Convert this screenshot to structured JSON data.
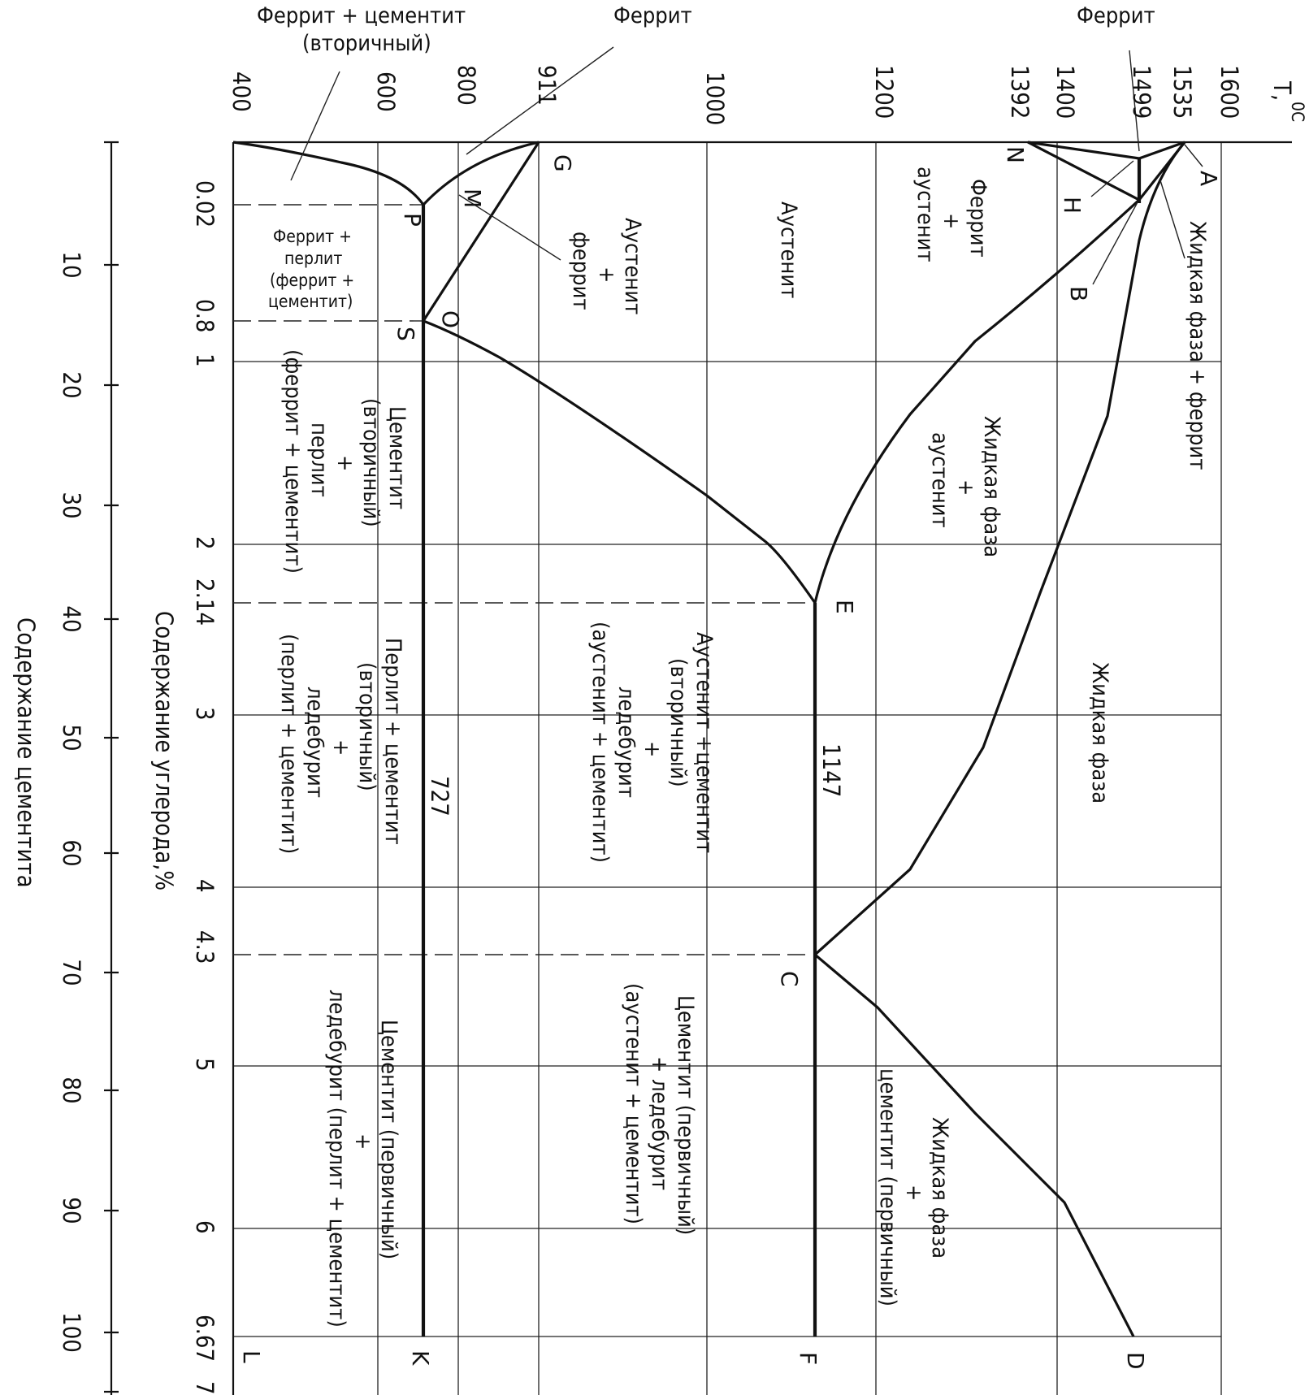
{
  "axes": {
    "temperature_label": "T,",
    "temperature_unit": "0C",
    "carbon_label": "Содержание углерода,%",
    "cementite_label": "Содержание цементита",
    "temperature_ticks": [
      "400",
      "600",
      "727",
      "800",
      "911",
      "1000",
      "1147",
      "1200",
      "1392",
      "1400",
      "1499",
      "1535",
      "1600"
    ],
    "carbon_ticks": [
      "0.02",
      "0.8",
      "1",
      "2",
      "2.14",
      "3",
      "4",
      "4.3",
      "5",
      "6",
      "6.67",
      "7"
    ],
    "cementite_ticks": [
      "10",
      "20",
      "30",
      "40",
      "50",
      "60",
      "70",
      "80",
      "90",
      "100"
    ]
  },
  "points": {
    "A": "A",
    "B": "B",
    "C": "C",
    "D": "D",
    "E": "E",
    "F": "F",
    "G": "G",
    "H": "H",
    "K": "K",
    "L": "L",
    "M": "M",
    "N": "N",
    "O": "O",
    "P": "P",
    "S": "S"
  },
  "regions": {
    "ferrite_top_left": "Феррит",
    "ferrite_top_right": "Феррит",
    "ferrite_cementite_1": "Феррит + цементит",
    "ferrite_cementite_2": "(вторичный)",
    "liquid_ferrite": "Жидкая фаза + феррит",
    "ferrite_austenite_1": "Феррит",
    "ferrite_austenite_2": "+",
    "ferrite_austenite_3": "аустенит",
    "austenite": "Аустенит",
    "austenite_ferrite_1": "Аустенит",
    "austenite_ferrite_2": "+",
    "austenite_ferrite_3": "феррит",
    "ferrite_pearlite_1": "Феррит +",
    "ferrite_pearlite_2": "перлит",
    "ferrite_pearlite_3": "(феррит +",
    "ferrite_pearlite_4": "цементит)",
    "liquid_austenite_1": "Жидкая фаза",
    "liquid_austenite_2": "+",
    "liquid_austenite_3": "аустенит",
    "liquid": "Жидкая фаза",
    "cem_pearlite_1": "Цементит",
    "cem_pearlite_2": "(вторичный)",
    "cem_pearlite_3": "+",
    "cem_pearlite_4": "перлит",
    "cem_pearlite_5": "(феррит + цементит)",
    "aus_cem_led_1": "Аустенит +цементит",
    "aus_cem_led_2": "(вторичный)",
    "aus_cem_led_3": "+",
    "aus_cem_led_4": "ледебурит",
    "aus_cem_led_5": "(аустенит + цементит)",
    "pearl_cem_led_1": "Перлит + цементит",
    "pearl_cem_led_2": "(вторичный)",
    "pearl_cem_led_3": "+",
    "pearl_cem_led_4": "ледебурит",
    "pearl_cem_led_5": "(перлит + цементит)",
    "cem_led_high_1": "Цементит (первичный)",
    "cem_led_high_2": "+ ледебурит",
    "cem_led_high_3": "(аустенит + цементит)",
    "liquid_cem_1": "Жидкая фаза",
    "liquid_cem_2": "+",
    "liquid_cem_3": "цементит (первичный)",
    "cem_led_low_1": "Цементит (первичный)",
    "cem_led_low_2": "+",
    "cem_led_low_3": "ледебурит (перлит + цементит)"
  }
}
